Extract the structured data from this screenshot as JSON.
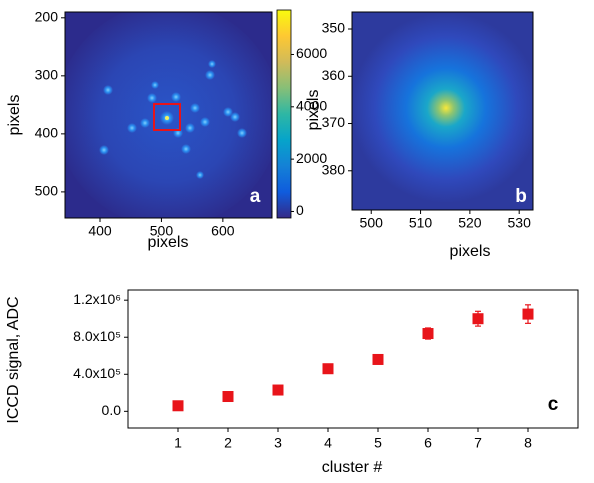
{
  "chart_data": [
    {
      "type": "image",
      "label": "a",
      "xlabel": "pixels",
      "ylabel": "pixels",
      "xlim": [
        343,
        680
      ],
      "ylim": [
        190,
        545
      ],
      "y_inverted": true,
      "xticks": [
        400,
        500,
        600
      ],
      "yticks": [
        200,
        300,
        400,
        500
      ],
      "colormap": [
        "#352a87",
        "#0f5cdd",
        "#1481d6",
        "#06a4ca",
        "#2eb7a4",
        "#87bf77",
        "#d1bb59",
        "#fec832",
        "#f9fb0e"
      ],
      "colorbar": {
        "clim": [
          -250,
          7700
        ],
        "ticks": [
          0,
          2000,
          4000,
          6000
        ]
      }
    },
    {
      "type": "image",
      "label": "b",
      "xlabel": "pixels",
      "ylabel": "pixels",
      "xlim": [
        496.1,
        532.8
      ],
      "ylim": [
        346.4,
        388.3
      ],
      "y_inverted": true,
      "xticks": [
        500,
        510,
        520,
        530
      ],
      "yticks": [
        350,
        360,
        370,
        380
      ]
    },
    {
      "type": "scatter",
      "label": "c",
      "xlabel": "cluster #",
      "ylabel": "ICCD signal, ADC",
      "x": [
        1,
        2,
        3,
        4,
        5,
        6,
        7,
        8
      ],
      "values": [
        60000,
        160000,
        230000,
        460000,
        560000,
        840000,
        1000000,
        1050000
      ],
      "errors": [
        20000,
        20000,
        20000,
        30000,
        30000,
        60000,
        80000,
        100000
      ],
      "color": "#e8141a",
      "xlim": [
        0,
        9
      ],
      "ylim": [
        -180000,
        1310000
      ],
      "xticks": [
        1,
        2,
        3,
        4,
        5,
        6,
        7,
        8
      ],
      "yticks": [
        {
          "value": 0,
          "label": "0.0"
        },
        {
          "value": 400000,
          "label": "4.0x10⁵"
        },
        {
          "value": 800000,
          "label": "8.0x10⁵"
        },
        {
          "value": 1200000,
          "label": "1.2x10⁶"
        }
      ]
    }
  ]
}
